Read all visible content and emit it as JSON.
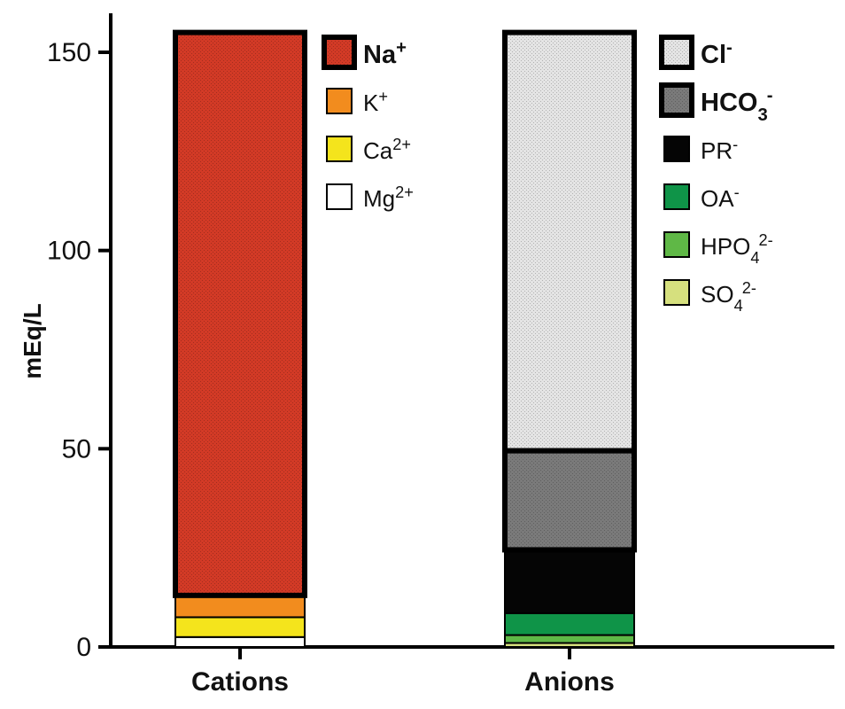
{
  "chart_data": {
    "type": "bar",
    "stacked": true,
    "ylabel": "mEq/L",
    "ylim": [
      0,
      155
    ],
    "yticks": [
      0,
      50,
      100,
      150
    ],
    "categories": [
      "Cations",
      "Anions"
    ],
    "grid": false,
    "stacks": [
      {
        "category": "Cations",
        "segments": [
          {
            "name": "Mg2+",
            "base": "Mg",
            "sup": "2+",
            "sub": "",
            "from": 0,
            "to": 2.5,
            "color": "#ffffff",
            "bold": false
          },
          {
            "name": "Ca2+",
            "base": "Ca",
            "sup": "2+",
            "sub": "",
            "from": 2.5,
            "to": 7.5,
            "color": "#f4e41c",
            "bold": false
          },
          {
            "name": "K+",
            "base": "K",
            "sup": "+",
            "sub": "",
            "from": 7.5,
            "to": 13,
            "color": "#f28c1e",
            "bold": false
          },
          {
            "name": "Na+",
            "base": "Na",
            "sup": "+",
            "sub": "",
            "from": 13,
            "to": 155,
            "color": "#d23a26",
            "bold": true
          }
        ]
      },
      {
        "category": "Anions",
        "segments": [
          {
            "name": "SO42-",
            "base": "SO",
            "sub": "4",
            "sup": "2-",
            "from": 0,
            "to": 1,
            "color": "#d6e07e",
            "bold": false
          },
          {
            "name": "HPO42-",
            "base": "HPO",
            "sub": "4",
            "sup": "2-",
            "from": 1,
            "to": 3,
            "color": "#5fb846",
            "bold": false
          },
          {
            "name": "OA-",
            "base": "OA",
            "sub": "",
            "sup": "-",
            "from": 3,
            "to": 8.5,
            "color": "#0f9448",
            "bold": false
          },
          {
            "name": "PR-",
            "base": "PR",
            "sub": "",
            "sup": "-",
            "from": 8.5,
            "to": 24.5,
            "color": "#050505",
            "bold": false
          },
          {
            "name": "HCO3-",
            "base": "HCO",
            "sub": "3",
            "sup": "-",
            "from": 24.5,
            "to": 49.5,
            "color": "#7a7a7a",
            "bold": true
          },
          {
            "name": "Cl-",
            "base": "Cl",
            "sub": "",
            "sup": "-",
            "from": 49.5,
            "to": 155,
            "color": "#e4e4e4",
            "bold": true
          }
        ]
      }
    ],
    "legends": [
      {
        "category": "Cations",
        "placement": "right of Cations bar",
        "order": [
          "Na+",
          "K+",
          "Ca2+",
          "Mg2+"
        ]
      },
      {
        "category": "Anions",
        "placement": "right of Anions bar",
        "order": [
          "Cl-",
          "HCO3-",
          "PR-",
          "OA-",
          "HPO42-",
          "SO42-"
        ]
      }
    ]
  }
}
